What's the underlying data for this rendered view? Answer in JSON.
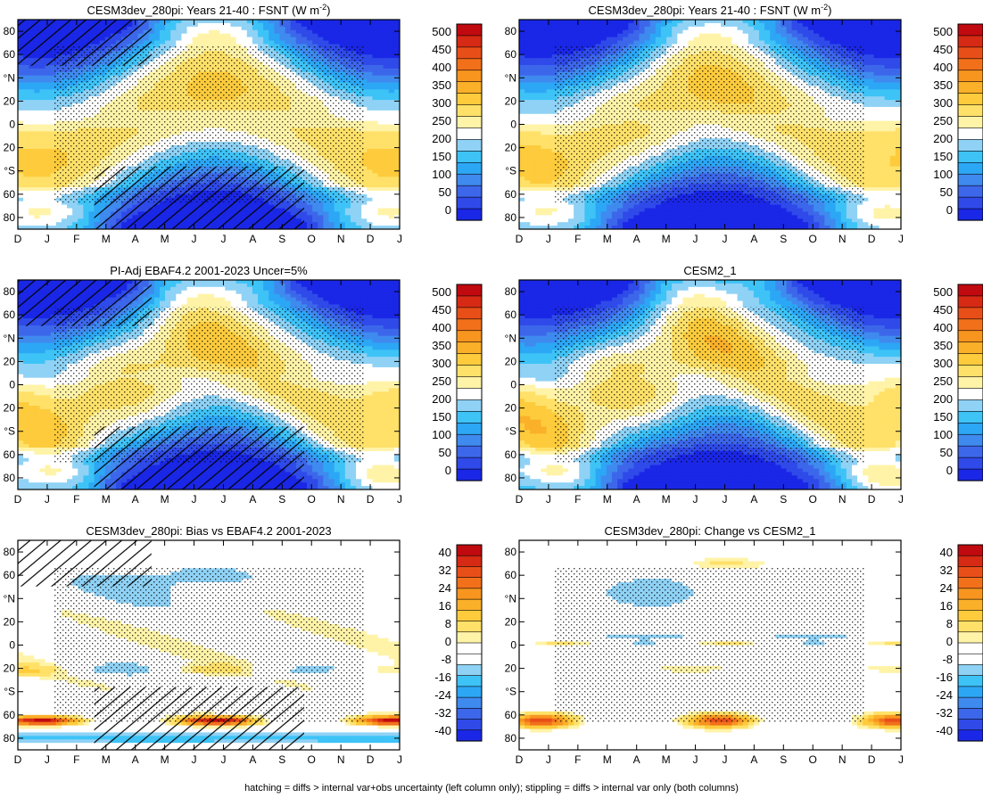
{
  "footnote": "hatching = diffs > internal var+obs uncertainty (left column only); stippling = diffs > internal var only (both columns)",
  "months": [
    "D",
    "J",
    "F",
    "M",
    "A",
    "M",
    "J",
    "J",
    "A",
    "S",
    "O",
    "N",
    "D",
    "J"
  ],
  "lat_ticks": [
    "80",
    "60",
    "°N",
    "20",
    "0",
    "20",
    "°S",
    "60",
    "80"
  ],
  "lat_values": [
    80,
    60,
    40,
    20,
    0,
    -20,
    -40,
    -60,
    -80
  ],
  "colors": {
    "abs": [
      "#1a27e6",
      "#2f4ae9",
      "#3d67ea",
      "#3f8aef",
      "#2ca7f5",
      "#3ec3f7",
      "#8fd2f5",
      "#ffffff",
      "#fff3a8",
      "#ffe169",
      "#fdcb3c",
      "#fbb02a",
      "#f7951f",
      "#f2701a",
      "#e84f18",
      "#d62a14",
      "#c00a0f"
    ],
    "diff": [
      "#1a27e6",
      "#2f4ae9",
      "#3d67ea",
      "#3f8aef",
      "#2ca7f5",
      "#3ec3f7",
      "#8fd2f5",
      "#ffffff",
      "#ffffff",
      "#fff3a8",
      "#ffe169",
      "#fdcb3c",
      "#fbb02a",
      "#f7951f",
      "#f2701a",
      "#e84f18",
      "#d62a14",
      "#c00a0f"
    ]
  },
  "colorbars": {
    "abs": [
      "500",
      "450",
      "400",
      "350",
      "300",
      "250",
      "200",
      "150",
      "100",
      "50",
      "0"
    ],
    "diff": [
      "40",
      "32",
      "24",
      "16",
      "8",
      "0",
      "-8",
      "-16",
      "-24",
      "-32",
      "-40"
    ]
  },
  "chart_data": [
    {
      "panel": "top-left",
      "type": "heatmap",
      "title": "CESM3dev_280pi: Years 21-40 : FSNT (W m⁻²)",
      "title_main": "CESM3dev_280pi: Years 21-40 : FSNT (W m",
      "title_sup": "-2",
      "title_end": ")",
      "xlabel": "",
      "ylabel": "",
      "x": [
        "D",
        "J",
        "F",
        "M",
        "A",
        "M",
        "J",
        "J",
        "A",
        "S",
        "O",
        "N",
        "D",
        "J"
      ],
      "ylim": [
        -90,
        90
      ],
      "field": "abs",
      "hatching": true,
      "stippling": true,
      "colorbar": [
        0,
        500
      ]
    },
    {
      "panel": "top-right",
      "type": "heatmap",
      "title": "CESM3dev_280pi: Years 21-40 : FSNT (W m⁻²)",
      "title_main": "CESM3dev_280pi: Years 21-40 : FSNT (W m",
      "title_sup": "-2",
      "title_end": ")",
      "xlabel": "",
      "ylabel": "",
      "x": [
        "D",
        "J",
        "F",
        "M",
        "A",
        "M",
        "J",
        "J",
        "A",
        "S",
        "O",
        "N",
        "D",
        "J"
      ],
      "ylim": [
        -90,
        90
      ],
      "field": "abs",
      "hatching": false,
      "stippling": true,
      "colorbar": [
        0,
        500
      ]
    },
    {
      "panel": "middle-left",
      "type": "heatmap",
      "title": "PI-Adj EBAF4.2 2001-2023 Uncer=5%",
      "xlabel": "",
      "ylabel": "",
      "x": [
        "D",
        "J",
        "F",
        "M",
        "A",
        "M",
        "J",
        "J",
        "A",
        "S",
        "O",
        "N",
        "D",
        "J"
      ],
      "ylim": [
        -90,
        90
      ],
      "field": "abs",
      "hatching": true,
      "stippling": true,
      "colorbar": [
        0,
        500
      ]
    },
    {
      "panel": "middle-right",
      "type": "heatmap",
      "title": "CESM2_1",
      "xlabel": "",
      "ylabel": "",
      "x": [
        "D",
        "J",
        "F",
        "M",
        "A",
        "M",
        "J",
        "J",
        "A",
        "S",
        "O",
        "N",
        "D",
        "J"
      ],
      "ylim": [
        -90,
        90
      ],
      "field": "abs",
      "hatching": false,
      "stippling": true,
      "colorbar": [
        0,
        500
      ]
    },
    {
      "panel": "bottom-left",
      "type": "heatmap",
      "title": "CESM3dev_280pi: Bias vs EBAF4.2 2001-2023",
      "xlabel": "",
      "ylabel": "",
      "x": [
        "D",
        "J",
        "F",
        "M",
        "A",
        "M",
        "J",
        "J",
        "A",
        "S",
        "O",
        "N",
        "D",
        "J"
      ],
      "ylim": [
        -90,
        90
      ],
      "field": "bias",
      "hatching": true,
      "stippling": true,
      "colorbar": [
        -40,
        40
      ]
    },
    {
      "panel": "bottom-right",
      "type": "heatmap",
      "title": "CESM3dev_280pi: Change vs CESM2_1",
      "xlabel": "",
      "ylabel": "",
      "x": [
        "D",
        "J",
        "F",
        "M",
        "A",
        "M",
        "J",
        "J",
        "A",
        "S",
        "O",
        "N",
        "D",
        "J"
      ],
      "ylim": [
        -90,
        90
      ],
      "field": "change",
      "hatching": false,
      "stippling": true,
      "colorbar": [
        -40,
        40
      ]
    }
  ]
}
